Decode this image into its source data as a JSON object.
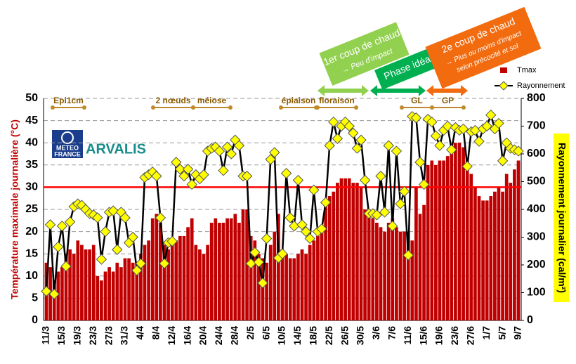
{
  "chart_data": {
    "type": "bar",
    "categories": [
      "11/3",
      null,
      null,
      null,
      "15/3",
      null,
      null,
      null,
      "19/3",
      null,
      null,
      null,
      "23/3",
      null,
      null,
      null,
      "27/3",
      null,
      null,
      null,
      "31/3",
      null,
      null,
      null,
      "4/4",
      null,
      null,
      null,
      "8/4",
      null,
      null,
      null,
      "12/4",
      null,
      null,
      null,
      "16/4",
      null,
      null,
      null,
      "20/4",
      null,
      null,
      null,
      "24/4",
      null,
      null,
      null,
      "28/4",
      null,
      null,
      null,
      "2/5",
      null,
      null,
      null,
      "6/5",
      null,
      null,
      null,
      "10/5",
      null,
      null,
      null,
      "14/5",
      null,
      null,
      null,
      "18/5",
      null,
      null,
      null,
      "22/5",
      null,
      null,
      null,
      "26/5",
      null,
      null,
      null,
      "30/5",
      null,
      null,
      null,
      "3/6",
      null,
      null,
      null,
      "7/6",
      null,
      null,
      null,
      "11/6",
      null,
      null,
      null,
      "15/6",
      null,
      null,
      null,
      "19/6",
      null,
      null,
      null,
      "23/6",
      null,
      null,
      null,
      "27/6",
      null,
      null,
      null,
      "1/7",
      null,
      null,
      null,
      "5/7",
      null,
      null,
      null,
      "9/7"
    ],
    "series": [
      {
        "name": "Tmax",
        "type": "bar",
        "color": "#c00000",
        "values": [
          13,
          12,
          9,
          11,
          12,
          15,
          16,
          15,
          18,
          17,
          16,
          16,
          17,
          10,
          9,
          11,
          12,
          11,
          13,
          12,
          14,
          14,
          13,
          12,
          15,
          17,
          18,
          23,
          24,
          22,
          17,
          16,
          17,
          18,
          19,
          19,
          21,
          23,
          17,
          16,
          15,
          17,
          22,
          23,
          22,
          22,
          23,
          23,
          24,
          22,
          25,
          25,
          19,
          18,
          15,
          14,
          13,
          17,
          20,
          24,
          16,
          15,
          14,
          14,
          15,
          16,
          15,
          17,
          18,
          19,
          20,
          26,
          28,
          29,
          31,
          32,
          32,
          32,
          31,
          31,
          30,
          25,
          24,
          23,
          22,
          21,
          20,
          22,
          23,
          21,
          20,
          20,
          20,
          18,
          30,
          24,
          26,
          35,
          36,
          35,
          36,
          36,
          37,
          38,
          40,
          40,
          39,
          36,
          33,
          30,
          28,
          27,
          27,
          28,
          29,
          30,
          29,
          33,
          31,
          34,
          36
        ]
      },
      {
        "name": "Rayonnement",
        "type": "line",
        "axis": "y2",
        "color": "#000000",
        "marker_color": "#ffff00",
        "values": [
          105,
          345,
          95,
          265,
          340,
          195,
          355,
          410,
          420,
          415,
          400,
          385,
          380,
          370,
          220,
          320,
          390,
          395,
          255,
          390,
          370,
          280,
          300,
          180,
          205,
          515,
          525,
          535,
          520,
          370,
          205,
          280,
          285,
          570,
          545,
          520,
          545,
          490,
          525,
          510,
          525,
          610,
          620,
          625,
          610,
          540,
          625,
          600,
          650,
          630,
          520,
          520,
          205,
          245,
          210,
          135,
          295,
          580,
          605,
          225,
          240,
          530,
          370,
          340,
          505,
          345,
          320,
          295,
          470,
          320,
          330,
          425,
          630,
          715,
          655,
          700,
          715,
          700,
          675,
          620,
          650,
          505,
          385,
          385,
          380,
          520,
          390,
          630,
          340,
          610,
          420,
          465,
          235,
          735,
          730,
          570,
          490,
          725,
          715,
          665,
          630,
          685,
          700,
          615,
          695,
          685,
          690,
          555,
          680,
          685,
          645,
          690,
          700,
          740,
          690,
          710,
          575,
          640,
          620,
          615,
          610
        ]
      }
    ],
    "threshold": 30,
    "threshold_color": "#ff0000",
    "ylabel": "Température maximale journalière (°C)",
    "y2label": "Rayonnement journalier (cal/m²)",
    "ylim": [
      0,
      50
    ],
    "yticks": [
      0,
      5,
      10,
      15,
      20,
      25,
      30,
      35,
      40,
      45,
      50
    ],
    "y2lim": [
      0,
      800
    ],
    "y2ticks": [
      0,
      100,
      200,
      300,
      400,
      500,
      600,
      700,
      800
    ],
    "grid": true,
    "legend": "upper right",
    "stages": [
      "Epi1cm",
      "2 nœuds",
      "méiose",
      "épiaison",
      "floraison",
      "GL",
      "GP"
    ],
    "phases": [
      {
        "title": "1er coup de chaud",
        "note": "→ Peu d'impact"
      },
      {
        "title": "Phase idéale"
      },
      {
        "title": "2e coup de chaud",
        "note": "→ Plus ou moins d'impact",
        "note2": "selon précocité et sol"
      }
    ],
    "logos": [
      "METEO",
      "FRANCE",
      "ARVALIS"
    ]
  }
}
